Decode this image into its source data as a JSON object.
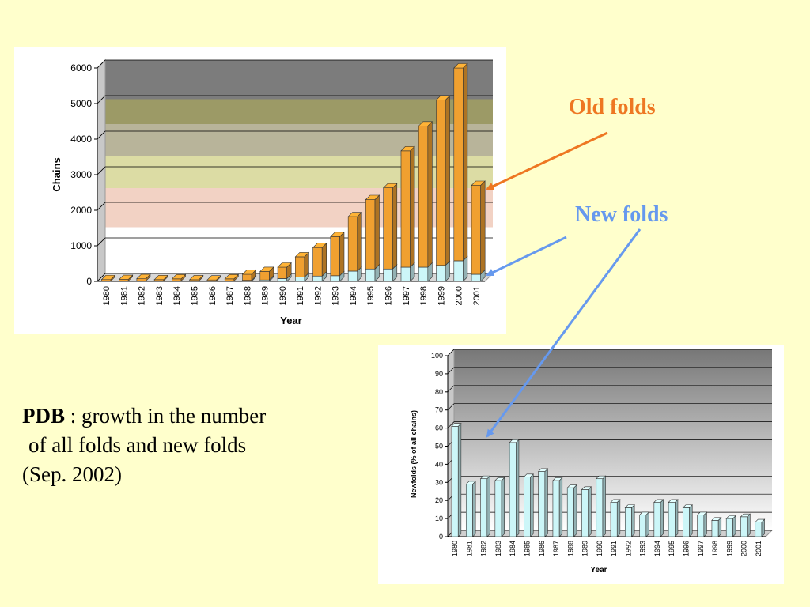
{
  "slide": {
    "description": {
      "bold": "PDB",
      "line1_rest": " : growth in the number",
      "line2": "of all folds and new folds",
      "line3": "(Sep. 2002)"
    },
    "callouts": {
      "old_folds": "Old folds",
      "new_folds": "New folds"
    },
    "colors": {
      "background": "#ffffcc",
      "old_folds": "#ee7722",
      "new_folds": "#6699ee",
      "bar_old": "#f0a030",
      "bar_new": "#ccf6f8"
    }
  },
  "chart_data": [
    {
      "type": "bar",
      "stacked": true,
      "three_d": true,
      "title": "",
      "xlabel": "Year",
      "ylabel": "Chains",
      "ylim": [
        0,
        6000
      ],
      "yticks": [
        0,
        1000,
        2000,
        3000,
        4000,
        5000,
        6000
      ],
      "categories": [
        "1980",
        "1981",
        "1982",
        "1983",
        "1984",
        "1985",
        "1986",
        "1987",
        "1988",
        "1989",
        "1990",
        "1991",
        "1992",
        "1993",
        "1994",
        "1995",
        "1996",
        "1997",
        "1998",
        "1999",
        "2000",
        "2001"
      ],
      "series": [
        {
          "values": [
            5,
            10,
            10,
            8,
            10,
            5,
            5,
            10,
            30,
            40,
            80,
            120,
            150,
            160,
            290,
            350,
            350,
            400,
            400,
            450,
            580,
            200
          ]
        },
        {
          "values": [
            45,
            45,
            65,
            40,
            60,
            40,
            35,
            60,
            170,
            240,
            320,
            570,
            800,
            1100,
            1530,
            1950,
            2280,
            3270,
            3970,
            4650,
            5420,
            2500
          ]
        }
      ],
      "totals": [
        50,
        55,
        75,
        48,
        70,
        45,
        40,
        70,
        200,
        280,
        400,
        690,
        950,
        1260,
        1820,
        2300,
        2630,
        3670,
        4370,
        5100,
        6000,
        2700
      ]
    },
    {
      "type": "bar",
      "three_d": true,
      "title": "",
      "xlabel": "Year",
      "ylabel": "Newfolds (% of all chains)",
      "ylim": [
        0,
        100
      ],
      "yticks": [
        0,
        10,
        20,
        30,
        40,
        50,
        60,
        70,
        80,
        90,
        100
      ],
      "categories": [
        "1980",
        "1981",
        "1982",
        "1983",
        "1984",
        "1985",
        "1986",
        "1987",
        "1988",
        "1989",
        "1990",
        "1991",
        "1992",
        "1993",
        "1994",
        "1995",
        "1996",
        "1997",
        "1998",
        "1999",
        "2000",
        "2001"
      ],
      "values": [
        61,
        29,
        32,
        31,
        52,
        33,
        36,
        31,
        27,
        26,
        32,
        19,
        16,
        12,
        19,
        19,
        16,
        12,
        9,
        10,
        11,
        8
      ]
    }
  ]
}
